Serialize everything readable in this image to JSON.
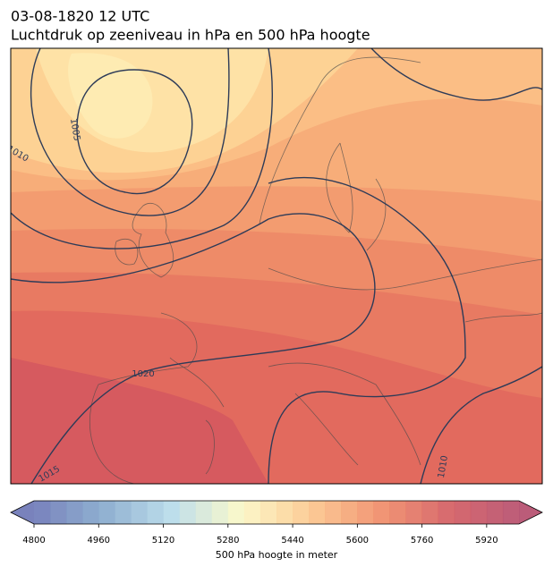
{
  "header": {
    "title": "03-08-1820 12 UTC",
    "subtitle": "Luchtdruk op zeeniveau in hPa en 500 hPa hoogte"
  },
  "map": {
    "isobar_labels": [
      1005,
      1010,
      1020,
      1015,
      1010
    ],
    "isobar_color": "#2d3b58"
  },
  "colorbar": {
    "label": "500 hPa hoogte in meter",
    "lim": [
      4800,
      6000
    ],
    "step": 40,
    "yticks": [
      4800,
      4960,
      5120,
      5280,
      5440,
      5600,
      5760,
      5920
    ],
    "colormap": [
      "#6a74b5",
      "#83a7cc",
      "#b7dbe9",
      "#fcf8c4",
      "#fcc58a",
      "#f08a66",
      "#d35a5f",
      "#b44a6a"
    ]
  }
}
